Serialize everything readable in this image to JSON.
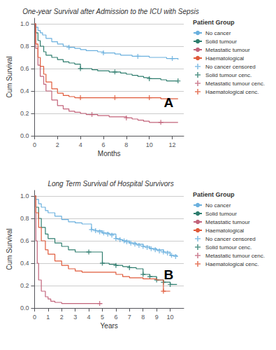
{
  "chart_data": [
    {
      "type": "step",
      "title": "One-year Survival after Admission to the ICU with Sepsis",
      "xlabel": "Months",
      "ylabel": "Cum Survival",
      "xlim": [
        0,
        13
      ],
      "ylim": [
        0.0,
        1.05
      ],
      "xticks": [
        0,
        2,
        4,
        6,
        8,
        10,
        12
      ],
      "yticks": [
        {
          "value": 0.0,
          "label": "0.0"
        },
        0.2,
        0.4,
        0.6,
        0.8,
        {
          "value": 1.0,
          "label": "1.0"
        }
      ],
      "grid": true,
      "legend": "right",
      "legend_title": "Patient Group",
      "annotations": [
        "A"
      ],
      "series": [
        {
          "name": "No cancer",
          "type": "step",
          "color": "#6ab0de",
          "x": [
            0,
            0.1,
            0.3,
            0.5,
            0.7,
            1.0,
            1.5,
            2.0,
            2.5,
            3.0,
            3.5,
            4.0,
            4.5,
            5.0,
            5.5,
            6.0,
            6.5,
            7.0,
            7.5,
            8.0,
            8.5,
            9.0,
            9.5,
            10.0,
            10.5,
            11.0,
            11.5,
            12.0,
            12.5
          ],
          "values": [
            1.0,
            0.97,
            0.94,
            0.92,
            0.9,
            0.87,
            0.84,
            0.82,
            0.8,
            0.79,
            0.78,
            0.77,
            0.76,
            0.76,
            0.75,
            0.74,
            0.74,
            0.73,
            0.72,
            0.72,
            0.71,
            0.71,
            0.71,
            0.7,
            0.7,
            0.7,
            0.69,
            0.69,
            0.68
          ]
        },
        {
          "name": "Solid tumour",
          "type": "step",
          "color": "#2e7d6e",
          "x": [
            0,
            0.1,
            0.3,
            0.5,
            0.8,
            1.0,
            1.5,
            2.0,
            2.5,
            3.0,
            3.5,
            4.0,
            4.5,
            5.0,
            5.5,
            6.0,
            6.5,
            7.0,
            7.5,
            8.0,
            8.5,
            9.0,
            9.5,
            10.0,
            10.5,
            11.0,
            11.5,
            12.0,
            12.5
          ],
          "values": [
            1.0,
            0.92,
            0.85,
            0.8,
            0.75,
            0.72,
            0.7,
            0.68,
            0.66,
            0.65,
            0.64,
            0.6,
            0.6,
            0.59,
            0.58,
            0.58,
            0.57,
            0.57,
            0.56,
            0.55,
            0.54,
            0.53,
            0.52,
            0.51,
            0.51,
            0.5,
            0.49,
            0.49,
            0.49
          ]
        },
        {
          "name": "Metastatic tumour",
          "type": "step",
          "color": "#c2637a",
          "x": [
            0,
            0.1,
            0.3,
            0.5,
            0.8,
            1.0,
            1.5,
            2.0,
            2.5,
            3.0,
            3.5,
            4.0,
            4.5,
            5.0,
            5.5,
            6.0,
            6.5,
            7.0,
            7.5,
            8.0,
            8.5,
            9.0,
            9.5,
            10.0,
            10.5,
            11.0,
            11.5,
            12.0,
            12.5
          ],
          "values": [
            1.0,
            0.78,
            0.63,
            0.53,
            0.46,
            0.4,
            0.32,
            0.27,
            0.24,
            0.22,
            0.21,
            0.2,
            0.19,
            0.19,
            0.18,
            0.18,
            0.17,
            0.17,
            0.17,
            0.16,
            0.15,
            0.14,
            0.13,
            0.12,
            0.12,
            0.12,
            0.12,
            0.12,
            0.12
          ]
        },
        {
          "name": "Haematological",
          "type": "step",
          "color": "#e05a3a",
          "x": [
            0,
            0.1,
            0.3,
            0.5,
            0.8,
            1.0,
            1.5,
            2.0,
            2.5,
            3.0,
            3.5,
            4.0,
            4.5,
            5.0,
            5.5,
            6.0,
            6.5,
            7.0,
            7.5,
            8.0,
            8.5,
            9.0,
            9.5,
            10.0,
            10.5,
            11.0,
            11.5,
            12.0,
            12.5
          ],
          "values": [
            1.0,
            0.82,
            0.7,
            0.62,
            0.55,
            0.48,
            0.42,
            0.38,
            0.36,
            0.35,
            0.34,
            0.34,
            0.34,
            0.34,
            0.34,
            0.34,
            0.34,
            0.34,
            0.34,
            0.34,
            0.34,
            0.34,
            0.34,
            0.34,
            0.34,
            0.33,
            0.33,
            0.33,
            0.33
          ]
        },
        {
          "name": "No cancer censored",
          "type": "scatter",
          "marker": "+",
          "color": "#6ab0de",
          "x": [
            3.0,
            6.0,
            9.0,
            12.0
          ],
          "values": [
            0.79,
            0.74,
            0.71,
            0.69
          ]
        },
        {
          "name": "Solid tumour cenc.",
          "type": "scatter",
          "marker": "+",
          "color": "#2e7d6e",
          "x": [
            4.0,
            7.0,
            10.0,
            12.5
          ],
          "values": [
            0.6,
            0.57,
            0.51,
            0.49
          ]
        },
        {
          "name": "Metastatic tumour cenc.",
          "type": "scatter",
          "marker": "+",
          "color": "#c2637a",
          "x": [
            5.0,
            8.0,
            11.0
          ],
          "values": [
            0.19,
            0.16,
            0.12
          ]
        },
        {
          "name": "Haematological cenc.",
          "type": "scatter",
          "marker": "+",
          "color": "#e05a3a",
          "x": [
            4.0,
            7.0,
            10.0
          ],
          "values": [
            0.34,
            0.34,
            0.34
          ]
        }
      ]
    },
    {
      "type": "step",
      "title": "Long Term Survival of Hospital Survivors",
      "xlabel": "Years",
      "ylabel": "Cum Survival",
      "xlim": [
        0,
        11
      ],
      "ylim": [
        0.0,
        1.05
      ],
      "xticks": [
        0,
        1,
        2,
        3,
        4,
        5,
        6,
        7,
        8,
        9,
        10
      ],
      "yticks": [
        {
          "value": 0.0,
          "label": "0.0"
        },
        0.2,
        0.4,
        0.6,
        0.8,
        {
          "value": 1.0,
          "label": "1.0"
        }
      ],
      "grid": true,
      "legend": "right",
      "legend_title": "Patient Group",
      "annotations": [
        "B"
      ],
      "series": [
        {
          "name": "No cancer",
          "type": "step",
          "color": "#6ab0de",
          "x": [
            0,
            0.1,
            0.3,
            0.5,
            0.8,
            1.0,
            1.5,
            2.0,
            2.5,
            3.0,
            3.5,
            4.0,
            4.2,
            4.5,
            5.0,
            5.5,
            6.0,
            6.3,
            6.5,
            7.0,
            7.5,
            8.0,
            8.5,
            9.0,
            9.5,
            10.0,
            10.5
          ],
          "values": [
            1.0,
            0.97,
            0.93,
            0.9,
            0.87,
            0.85,
            0.82,
            0.79,
            0.77,
            0.76,
            0.75,
            0.75,
            0.7,
            0.69,
            0.67,
            0.66,
            0.62,
            0.61,
            0.6,
            0.58,
            0.57,
            0.55,
            0.53,
            0.52,
            0.5,
            0.47,
            0.46
          ]
        },
        {
          "name": "Solid tumour",
          "type": "step",
          "color": "#2e7d6e",
          "x": [
            0,
            0.1,
            0.3,
            0.5,
            0.8,
            1.0,
            1.5,
            2.0,
            2.5,
            3.0,
            3.5,
            4.0,
            4.5,
            5.0,
            5.5,
            6.0,
            6.5,
            7.0,
            7.5,
            8.0,
            8.5,
            9.0,
            9.5,
            10.0,
            10.5
          ],
          "values": [
            1.0,
            0.9,
            0.8,
            0.72,
            0.66,
            0.62,
            0.58,
            0.55,
            0.52,
            0.5,
            0.5,
            0.5,
            0.5,
            0.4,
            0.39,
            0.38,
            0.37,
            0.36,
            0.35,
            0.3,
            0.28,
            0.25,
            0.23,
            0.21,
            0.21
          ]
        },
        {
          "name": "Metastatic tumour",
          "type": "step",
          "color": "#c2637a",
          "x": [
            0,
            0.1,
            0.2,
            0.3,
            0.5,
            0.8,
            1.0,
            1.2,
            1.5,
            2.0,
            2.5,
            3.0,
            3.5,
            4.0,
            4.5,
            4.8,
            5.0
          ],
          "values": [
            1.0,
            0.6,
            0.4,
            0.25,
            0.15,
            0.1,
            0.08,
            0.06,
            0.05,
            0.04,
            0.04,
            0.04,
            0.04,
            0.04,
            0.04,
            0.04,
            0.04
          ]
        },
        {
          "name": "Haematological",
          "type": "step",
          "color": "#e05a3a",
          "x": [
            0,
            0.1,
            0.3,
            0.5,
            0.8,
            1.0,
            1.5,
            2.0,
            2.5,
            3.0,
            3.5,
            4.0,
            4.5,
            5.0,
            5.5,
            6.0,
            6.5,
            7.0,
            7.5,
            8.0,
            8.5,
            9.0,
            9.5,
            10.0
          ],
          "values": [
            1.0,
            0.85,
            0.72,
            0.6,
            0.52,
            0.48,
            0.42,
            0.38,
            0.35,
            0.33,
            0.32,
            0.32,
            0.32,
            0.32,
            0.32,
            0.3,
            0.28,
            0.27,
            0.27,
            0.26,
            0.26,
            0.25,
            0.15,
            0.15
          ]
        },
        {
          "name": "No cancer censored",
          "type": "scatter",
          "marker": "+",
          "color": "#6ab0de",
          "x": [
            4.2,
            4.5,
            4.8,
            5.1,
            5.4,
            5.7,
            6.0,
            6.3,
            6.6,
            6.8,
            7.1,
            7.4,
            7.7,
            8.0,
            8.3,
            8.6,
            8.9,
            9.2,
            9.5,
            9.8,
            10.1,
            10.4
          ],
          "values": [
            0.7,
            0.69,
            0.68,
            0.67,
            0.66,
            0.65,
            0.62,
            0.61,
            0.6,
            0.59,
            0.58,
            0.57,
            0.56,
            0.55,
            0.54,
            0.53,
            0.52,
            0.51,
            0.5,
            0.49,
            0.47,
            0.46
          ]
        },
        {
          "name": "Solid tumour cenc.",
          "type": "scatter",
          "marker": "+",
          "color": "#2e7d6e",
          "x": [
            4.0,
            5.0,
            6.0,
            7.0,
            8.0,
            8.5,
            9.0,
            9.5,
            10.0
          ],
          "values": [
            0.5,
            0.4,
            0.38,
            0.36,
            0.3,
            0.28,
            0.25,
            0.23,
            0.21
          ]
        },
        {
          "name": "Metastatic tumour cenc.",
          "type": "scatter",
          "marker": "+",
          "color": "#c2637a",
          "x": [
            4.8
          ],
          "values": [
            0.04
          ]
        },
        {
          "name": "Haematological cenc.",
          "type": "scatter",
          "marker": "+",
          "color": "#e05a3a",
          "x": [
            9.5
          ],
          "values": [
            0.15
          ]
        }
      ]
    }
  ]
}
